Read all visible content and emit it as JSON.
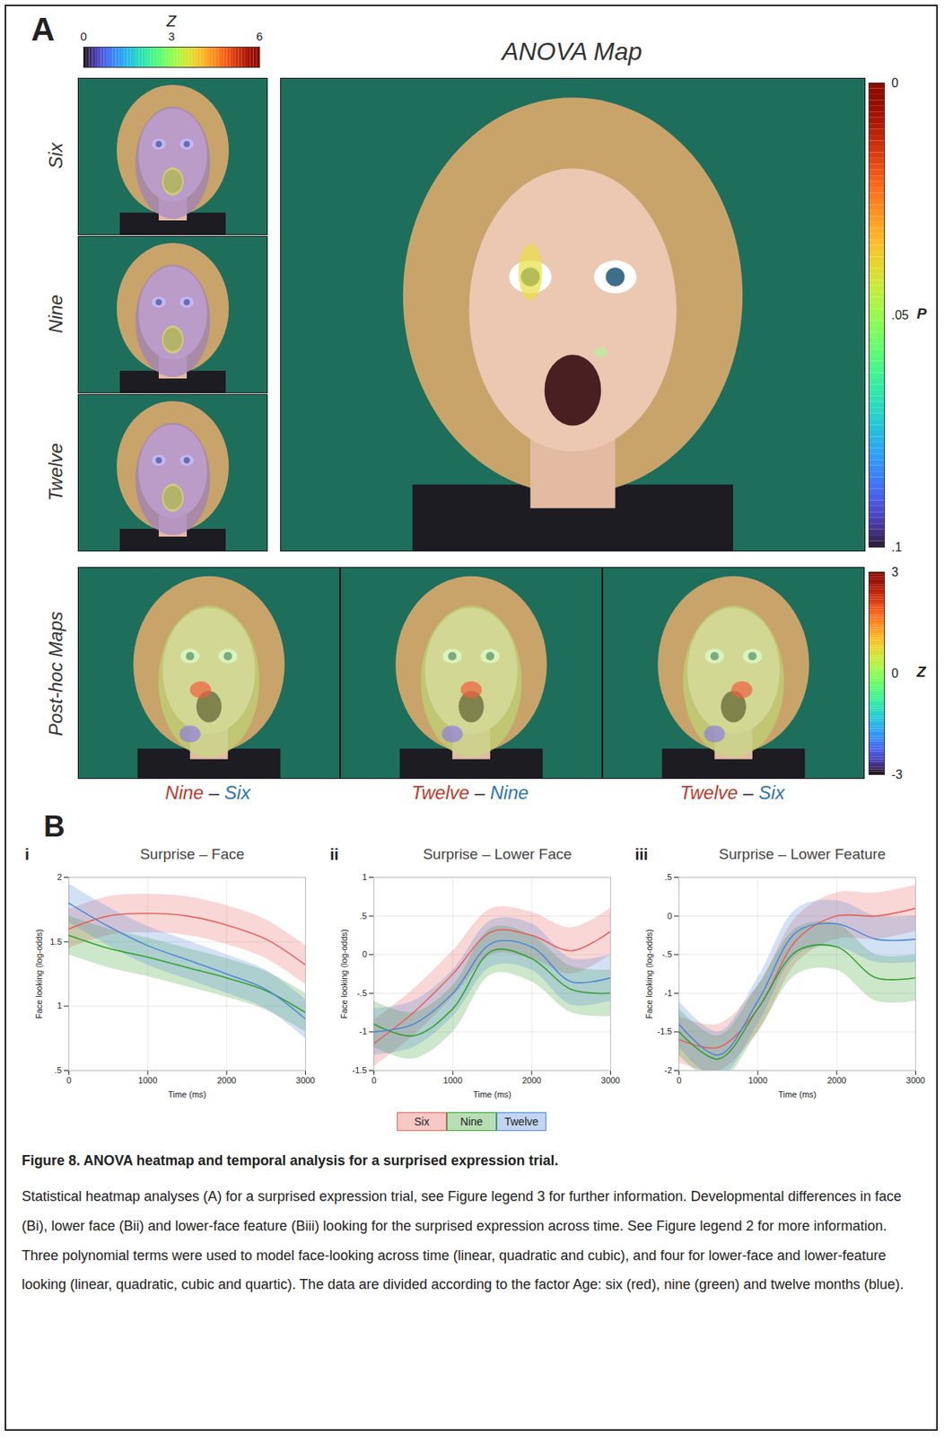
{
  "panel_a": {
    "letter": "A",
    "group_labels": [
      "Six",
      "Nine",
      "Twelve"
    ],
    "z_colorbar": {
      "label": "Z",
      "lim": [
        0,
        6
      ],
      "ticks": [
        0,
        3,
        6
      ]
    },
    "anova": {
      "title": "ANOVA Map",
      "colorbar": {
        "label": "P",
        "lim": [
          0,
          0.1
        ],
        "ticks": [
          0,
          {
            "value": 0.05,
            "label": ".05"
          },
          {
            "value": 0.1,
            "label": ".1"
          }
        ]
      }
    },
    "post_hoc": {
      "label": "Post-hoc Maps",
      "colorbar": {
        "label": "Z",
        "lim": [
          -3,
          3
        ],
        "ticks": [
          -3,
          0,
          3
        ]
      },
      "comparisons": [
        {
          "left": "Nine",
          "separator": "–",
          "right": "Six",
          "left_color": "#c0392b",
          "separator_color": "#222222",
          "right_color": "#2e75b6"
        },
        {
          "left": "Twelve",
          "separator": "–",
          "right": "Nine",
          "left_color": "#c0392b",
          "separator_color": "#222222",
          "right_color": "#2e75b6"
        },
        {
          "left": "Twelve",
          "separator": "–",
          "right": "Six",
          "left_color": "#c0392b",
          "separator_color": "#222222",
          "right_color": "#2e75b6"
        }
      ]
    }
  },
  "panel_b": {
    "letter": "B",
    "legend": "bottom"
  },
  "chart_data": [
    {
      "type": "line",
      "label": "i",
      "title": "Surprise – Face",
      "x_label": "Time (ms)",
      "y_label": "Face looking (log-odds)",
      "grid": true,
      "x": [
        0,
        500,
        1000,
        1500,
        2000,
        2500,
        3000
      ],
      "xlim": [
        0,
        3000
      ],
      "xticks": [
        0,
        1000,
        2000,
        3000
      ],
      "ylim": [
        0.5,
        2
      ],
      "yticks": [
        {
          "value": 0.5,
          "label": ".5"
        },
        1,
        {
          "value": 1.5,
          "label": "1.5"
        },
        2
      ],
      "series": [
        {
          "name": "Six",
          "color": "#e8615a",
          "values": [
            1.6,
            1.7,
            1.72,
            1.7,
            1.63,
            1.52,
            1.32
          ],
          "lower": [
            1.45,
            1.55,
            1.57,
            1.55,
            1.48,
            1.37,
            1.17
          ],
          "upper": [
            1.75,
            1.85,
            1.87,
            1.85,
            1.78,
            1.67,
            1.47
          ]
        },
        {
          "name": "Nine",
          "color": "#33a02c",
          "values": [
            1.55,
            1.45,
            1.38,
            1.3,
            1.22,
            1.12,
            0.95
          ],
          "lower": [
            1.4,
            1.3,
            1.23,
            1.15,
            1.07,
            0.97,
            0.8
          ],
          "upper": [
            1.7,
            1.6,
            1.53,
            1.45,
            1.37,
            1.27,
            1.1
          ]
        },
        {
          "name": "Twelve",
          "color": "#4f86d9",
          "values": [
            1.8,
            1.62,
            1.47,
            1.36,
            1.25,
            1.13,
            0.9
          ],
          "lower": [
            1.65,
            1.47,
            1.32,
            1.21,
            1.1,
            0.98,
            0.75
          ],
          "upper": [
            1.95,
            1.77,
            1.62,
            1.51,
            1.4,
            1.28,
            1.05
          ]
        }
      ]
    },
    {
      "type": "line",
      "label": "ii",
      "title": "Surprise – Lower Face",
      "x_label": "Time (ms)",
      "y_label": "Face looking (log-odds)",
      "grid": true,
      "x": [
        0,
        500,
        1000,
        1500,
        2000,
        2500,
        3000
      ],
      "xlim": [
        0,
        3000
      ],
      "xticks": [
        0,
        1000,
        2000,
        3000
      ],
      "ylim": [
        -1.5,
        1
      ],
      "yticks": [
        {
          "value": -1.5,
          "label": "-1.5"
        },
        -1,
        {
          "value": -0.5,
          "label": "-.5"
        },
        0,
        {
          "value": 0.5,
          "label": ".5"
        },
        1
      ],
      "series": [
        {
          "name": "Six",
          "color": "#e8615a",
          "values": [
            -1.15,
            -0.75,
            -0.25,
            0.3,
            0.25,
            0.05,
            0.3
          ],
          "lower": [
            -1.45,
            -1.05,
            -0.55,
            0,
            -0.05,
            -0.25,
            0
          ],
          "upper": [
            -0.85,
            -0.45,
            0.05,
            0.6,
            0.55,
            0.35,
            0.6
          ]
        },
        {
          "name": "Nine",
          "color": "#33a02c",
          "values": [
            -0.9,
            -1.05,
            -0.7,
            0.05,
            -0.05,
            -0.45,
            -0.5
          ],
          "lower": [
            -1.2,
            -1.35,
            -1,
            -0.25,
            -0.35,
            -0.75,
            -0.8
          ],
          "upper": [
            -0.6,
            -0.75,
            -0.4,
            0.35,
            0.25,
            -0.15,
            -0.2
          ]
        },
        {
          "name": "Twelve",
          "color": "#4f86d9",
          "values": [
            -1.0,
            -0.9,
            -0.5,
            0.15,
            0.1,
            -0.35,
            -0.3
          ],
          "lower": [
            -1.3,
            -1.2,
            -0.8,
            -0.15,
            -0.2,
            -0.65,
            -0.6
          ],
          "upper": [
            -0.7,
            -0.6,
            -0.2,
            0.45,
            0.4,
            -0.05,
            0
          ]
        }
      ]
    },
    {
      "type": "line",
      "label": "iii",
      "title": "Surprise – Lower Feature",
      "x_label": "Time (ms)",
      "y_label": "Face looking (log-odds)",
      "grid": true,
      "x": [
        0,
        500,
        1000,
        1500,
        2000,
        2500,
        3000
      ],
      "xlim": [
        0,
        3000
      ],
      "xticks": [
        0,
        1000,
        2000,
        3000
      ],
      "ylim": [
        -2,
        0.5
      ],
      "yticks": [
        -2,
        {
          "value": -1.5,
          "label": "-1.5"
        },
        -1,
        {
          "value": -0.5,
          "label": "-.5"
        },
        0,
        {
          "value": 0.5,
          "label": ".5"
        }
      ],
      "series": [
        {
          "name": "Six",
          "color": "#e8615a",
          "values": [
            -1.6,
            -1.7,
            -1.2,
            -0.3,
            0,
            0,
            0.1
          ],
          "lower": [
            -1.9,
            -2.0,
            -1.5,
            -0.6,
            -0.3,
            -0.3,
            -0.2
          ],
          "upper": [
            -1.3,
            -1.4,
            -0.9,
            0,
            0.3,
            0.3,
            0.4
          ]
        },
        {
          "name": "Nine",
          "color": "#33a02c",
          "values": [
            -1.5,
            -1.85,
            -1.2,
            -0.45,
            -0.4,
            -0.8,
            -0.8
          ],
          "lower": [
            -1.8,
            -2.15,
            -1.5,
            -0.75,
            -0.7,
            -1.1,
            -1.1
          ],
          "upper": [
            -1.2,
            -1.55,
            -0.9,
            -0.15,
            -0.1,
            -0.5,
            -0.5
          ]
        },
        {
          "name": "Twelve",
          "color": "#4f86d9",
          "values": [
            -1.4,
            -1.8,
            -1.1,
            -0.2,
            -0.1,
            -0.3,
            -0.3
          ],
          "lower": [
            -1.7,
            -2.1,
            -1.4,
            -0.5,
            -0.4,
            -0.6,
            -0.6
          ],
          "upper": [
            -1.1,
            -1.5,
            -0.8,
            0.1,
            0.2,
            0,
            0
          ]
        }
      ]
    }
  ],
  "caption": {
    "title": "Figure 8. ANOVA heatmap and temporal analysis for a surprised expression trial.",
    "text": "Statistical heatmap analyses (A) for a surprised expression trial, see Figure legend 3 for further information. Developmental differences in face (Bi), lower face (Bii) and lower-face feature (Biii) looking for the surprised expression across time. See Figure legend 2 for more information. Three polynomial terms were used to model face-looking across time (linear, quadratic and cubic), and four for lower-face and lower-feature looking (linear, quadratic, cubic and quartic). The data are divided according to the factor Age: six (red), nine (green) and twelve months (blue)."
  }
}
